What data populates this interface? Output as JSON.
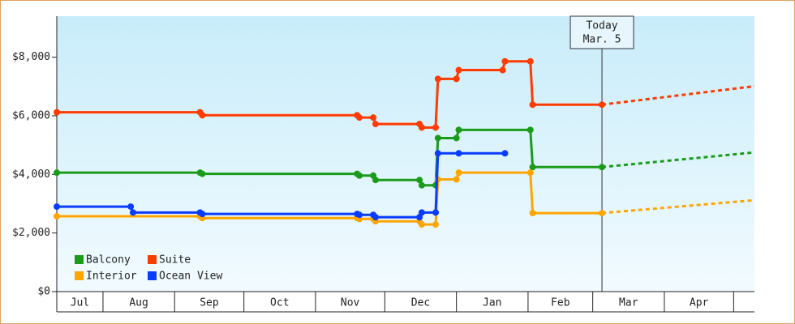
{
  "chart_data": {
    "type": "step-line",
    "xlim": [
      0,
      302
    ],
    "xticks": [
      {
        "value": 0,
        "label": "Jul"
      },
      {
        "value": 20,
        "label": "Aug"
      },
      {
        "value": 51,
        "label": "Sep"
      },
      {
        "value": 81,
        "label": "Oct"
      },
      {
        "value": 112,
        "label": "Nov"
      },
      {
        "value": 142,
        "label": "Dec"
      },
      {
        "value": 173,
        "label": "Jan"
      },
      {
        "value": 204,
        "label": "Feb"
      },
      {
        "value": 232,
        "label": "Mar"
      },
      {
        "value": 263,
        "label": "Apr"
      },
      {
        "value": 293,
        "label": null
      }
    ],
    "ylim": [
      0,
      9400
    ],
    "yticks": [
      {
        "value": 0,
        "label": "$0"
      },
      {
        "value": 2000,
        "label": "$2,000"
      },
      {
        "value": 4000,
        "label": "$4,000"
      },
      {
        "value": 6000,
        "label": "$6,000"
      },
      {
        "value": 8000,
        "label": "$8,000"
      }
    ],
    "today": {
      "x": 236,
      "labels": [
        "Today",
        "Mar. 5"
      ]
    },
    "series": [
      {
        "name": "Balcony",
        "color": "#1a9c1a",
        "x": [
          0,
          62,
          63,
          130,
          131,
          137,
          138,
          157,
          158,
          164,
          165,
          173,
          174,
          205,
          206,
          236
        ],
        "values": [
          4060,
          4060,
          4020,
          4020,
          3960,
          3960,
          3810,
          3810,
          3630,
          3630,
          5240,
          5240,
          5520,
          5520,
          4250,
          4250
        ],
        "forecast": {
          "x": [
            236,
            302
          ],
          "values": [
            4250,
            4750
          ]
        }
      },
      {
        "name": "Suite",
        "color": "#ff3b00",
        "x": [
          0,
          62,
          63,
          130,
          131,
          137,
          138,
          157,
          158,
          164,
          165,
          173,
          174,
          193,
          194,
          205,
          206,
          236
        ],
        "values": [
          6120,
          6120,
          6020,
          6020,
          5940,
          5940,
          5720,
          5720,
          5600,
          5600,
          7260,
          7260,
          7560,
          7560,
          7860,
          7860,
          6380,
          6380
        ],
        "forecast": {
          "x": [
            236,
            302
          ],
          "values": [
            6380,
            7010
          ]
        }
      },
      {
        "name": "Interior",
        "color": "#ffa500",
        "x": [
          0,
          62,
          63,
          130,
          131,
          137,
          138,
          157,
          158,
          164,
          165,
          173,
          174,
          205,
          206,
          236
        ],
        "values": [
          2570,
          2570,
          2510,
          2510,
          2480,
          2480,
          2400,
          2400,
          2290,
          2290,
          3830,
          3830,
          4060,
          4060,
          2680,
          2680
        ],
        "forecast": {
          "x": [
            236,
            302
          ],
          "values": [
            2680,
            3120
          ]
        }
      },
      {
        "name": "Ocean View",
        "color": "#0a3cff",
        "x": [
          0,
          32,
          33,
          62,
          63,
          130,
          131,
          137,
          138,
          157,
          158,
          164,
          165,
          174,
          194
        ],
        "values": [
          2900,
          2900,
          2700,
          2700,
          2650,
          2650,
          2620,
          2620,
          2540,
          2540,
          2700,
          2700,
          4720,
          4720,
          4720
        ]
      }
    ]
  }
}
